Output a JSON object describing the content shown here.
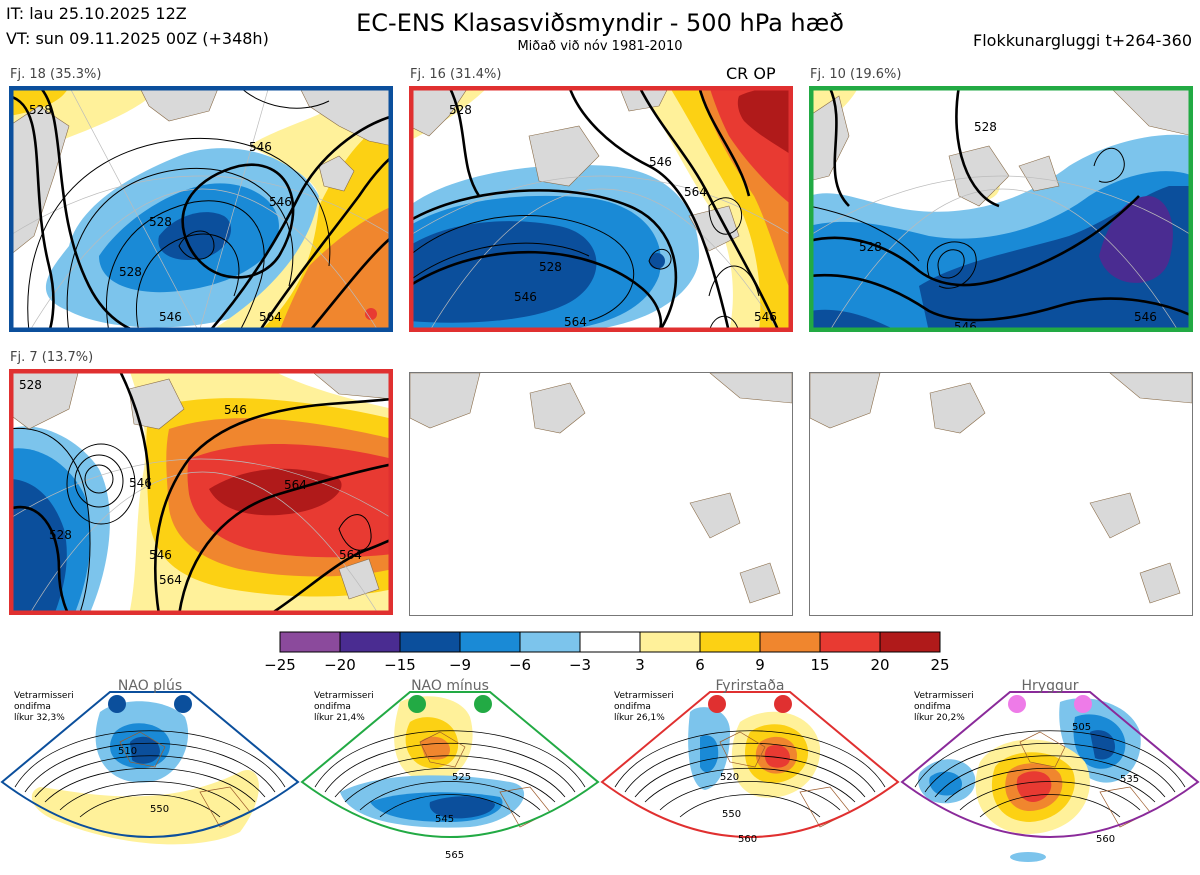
{
  "header": {
    "issue_time": "IT: lau 25.10.2025 12Z",
    "valid_time": "VT: sun 09.11.2025 00Z  (+348h)",
    "title": "EC-ENS Klasasviðsmyndir - 500 hPa hæð",
    "subtitle": "Miðað við nóv 1981-2010",
    "window": "Flokkunargluggi t+264-360"
  },
  "panels": [
    {
      "label": "Fj. 18 (35.3%)",
      "frame_color": "#0b4f9c",
      "tag": "",
      "contours": [
        "528",
        "546",
        "528",
        "546",
        "528",
        "546",
        "564"
      ]
    },
    {
      "label": "Fj. 16 (31.4%)",
      "frame_color": "#e03030",
      "tag": "CR OP",
      "contours": [
        "528",
        "546",
        "564",
        "528",
        "546",
        "564",
        "546"
      ]
    },
    {
      "label": "Fj. 10 (19.6%)",
      "frame_color": "#22aa44",
      "tag": "",
      "contours": [
        "528",
        "528",
        "546",
        "546"
      ]
    },
    {
      "label": "Fj. 7 (13.7%)",
      "frame_color": "#e03030",
      "tag": "",
      "contours": [
        "528",
        "528",
        "546",
        "546",
        "564",
        "564",
        "546",
        "564"
      ]
    }
  ],
  "chart_data": {
    "type": "heatmap",
    "variable": "500 hPa height anomaly (dam)",
    "clusters": [
      {
        "name": "Fj. 18",
        "probability_pct": 35.3
      },
      {
        "name": "Fj. 16",
        "probability_pct": 31.4
      },
      {
        "name": "Fj. 10",
        "probability_pct": 19.6
      },
      {
        "name": "Fj. 7",
        "probability_pct": 13.7
      }
    ],
    "colorbar": {
      "ticks": [
        "−25",
        "−20",
        "−15",
        "−9",
        "−6",
        "−3",
        "3",
        "6",
        "9",
        "15",
        "20",
        "25"
      ],
      "colors": [
        "#8b4a9c",
        "#4a2c91",
        "#0b4f9c",
        "#1a8ad6",
        "#7cc4ec",
        "#ffffff",
        "#fff19a",
        "#fcd114",
        "#f0862e",
        "#e83a32",
        "#b01a1a"
      ]
    }
  },
  "regimes": [
    {
      "title": "NAO plús",
      "note": [
        "Vetrarmisseri",
        "ondifma",
        "líkur 32,3%"
      ],
      "color": "#0b4f9c",
      "dot_color": "#0b4f9c",
      "contour_labels": [
        "510",
        "550"
      ]
    },
    {
      "title": "NAO mínus",
      "note": [
        "Vetrarmisseri",
        "ondifma",
        "líkur 21,4%"
      ],
      "color": "#22aa44",
      "dot_color": "#22aa44",
      "contour_labels": [
        "525",
        "545",
        "565"
      ]
    },
    {
      "title": "Fyrirstaða",
      "note": [
        "Vetrarmisseri",
        "ondifma",
        "líkur 26,1%"
      ],
      "color": "#e03030",
      "dot_color": "#e03030",
      "contour_labels": [
        "520",
        "550",
        "560"
      ]
    },
    {
      "title": "Hryggur",
      "note": [
        "Vetrarmisseri",
        "ondifma",
        "líkur 20,2%"
      ],
      "color": "#8a2a9a",
      "dot_color": "#ee7be8",
      "contour_labels": [
        "505",
        "535",
        "560"
      ]
    }
  ]
}
